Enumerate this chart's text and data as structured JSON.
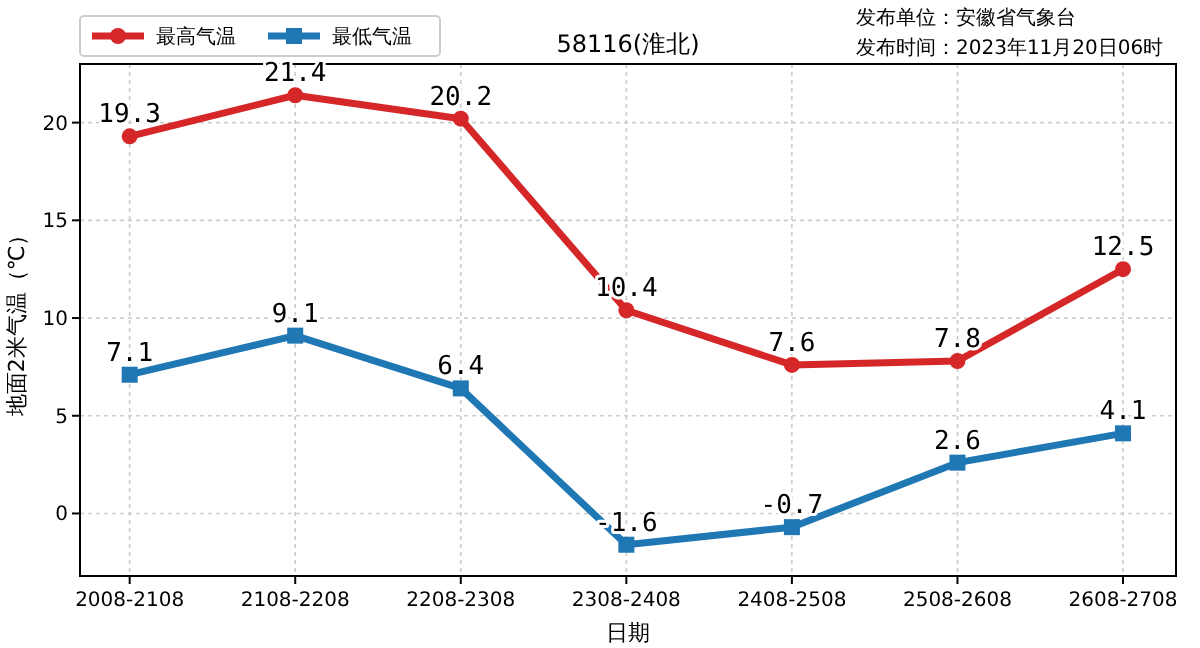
{
  "chart_data": {
    "type": "line",
    "title": "58116(淮北)",
    "xlabel": "日期",
    "ylabel": "地面2米气温（℃）",
    "annotations": [
      "发布单位：安徽省气象台",
      "发布时间：2023年11月20日06时"
    ],
    "categories": [
      "2008-2108",
      "2108-2208",
      "2208-2308",
      "2308-2408",
      "2408-2508",
      "2508-2608",
      "2608-2708"
    ],
    "series": [
      {
        "name": "最高气温",
        "color": "#d62728",
        "marker": "circle",
        "values": [
          19.3,
          21.4,
          20.2,
          10.4,
          7.6,
          7.8,
          12.5
        ]
      },
      {
        "name": "最低气温",
        "color": "#1f77b4",
        "marker": "square",
        "values": [
          7.1,
          9.1,
          6.4,
          -1.6,
          -0.7,
          2.6,
          4.1
        ]
      }
    ],
    "ylim": [
      -3.2,
      23
    ],
    "yticks": [
      0,
      5,
      10,
      15,
      20
    ],
    "grid": true,
    "legend": "top left",
    "data_labels": true,
    "line_style": "solid"
  }
}
